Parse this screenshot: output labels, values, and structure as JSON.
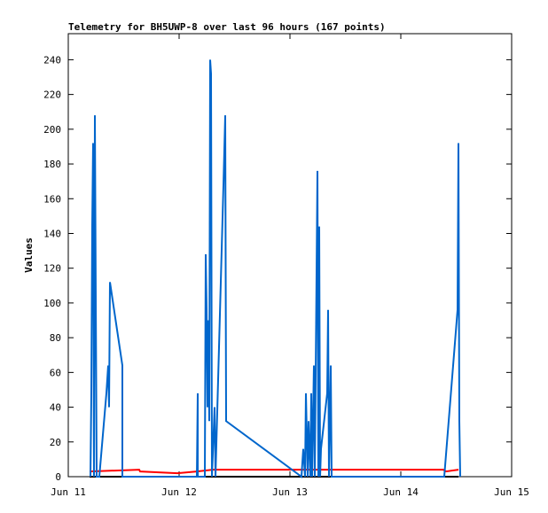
{
  "chart_data": {
    "type": "line",
    "title": "Telemetry for BH5UWP-8 over last 96 hours (167 points)",
    "ylabel": "Values",
    "xlim": [
      11,
      15
    ],
    "xticks": [
      {
        "value": 11,
        "label": "Jun 11"
      },
      {
        "value": 12,
        "label": "Jun 12"
      },
      {
        "value": 13,
        "label": "Jun 13"
      },
      {
        "value": 14,
        "label": "Jun 14"
      },
      {
        "value": 15,
        "label": "Jun 15"
      }
    ],
    "ylim": [
      0,
      255
    ],
    "yticks": [
      0,
      20,
      40,
      60,
      80,
      100,
      120,
      140,
      160,
      180,
      200,
      220,
      240
    ],
    "series": [
      {
        "color": "#000000",
        "x": [
          11.192,
          14.52
        ],
        "values": [
          0,
          0
        ]
      },
      {
        "color": "#ff0000",
        "x": [
          11.192,
          11.64,
          11.648,
          11.984,
          12.16,
          12.304,
          14.384,
          14.408,
          14.52
        ],
        "values": [
          3,
          4,
          3,
          2,
          3,
          4,
          4,
          3,
          4
        ]
      },
      {
        "color": "#0066cc",
        "x": [
          11.2,
          11.208,
          11.216,
          11.224,
          11.232,
          11.24,
          11.248,
          11.256,
          11.28,
          11.344,
          11.36,
          11.368,
          11.376,
          11.488,
          11.488,
          12.16,
          12.168,
          12.168,
          12.232,
          12.24,
          12.248,
          12.256,
          12.264,
          12.272,
          12.28,
          12.288,
          12.296,
          12.32,
          12.328,
          12.4,
          12.416,
          12.424,
          13.104,
          13.12,
          13.136,
          13.144,
          13.16,
          13.168,
          13.184,
          13.192,
          13.2,
          13.216,
          13.224,
          13.248,
          13.256,
          13.264,
          13.272,
          13.28,
          13.336,
          13.344,
          13.352,
          13.368,
          13.376,
          14.392,
          14.512,
          14.52,
          14.528,
          14.536
        ],
        "values": [
          0,
          48,
          144,
          192,
          0,
          208,
          104,
          0,
          0,
          48,
          64,
          40,
          112,
          64,
          0,
          0,
          48,
          0,
          0,
          128,
          96,
          40,
          90,
          32,
          240,
          232,
          0,
          40,
          0,
          168,
          208,
          32,
          0,
          16,
          0,
          48,
          0,
          32,
          0,
          48,
          0,
          64,
          0,
          176,
          0,
          144,
          0,
          16,
          48,
          96,
          0,
          64,
          0,
          0,
          96,
          192,
          32,
          0
        ]
      }
    ]
  }
}
